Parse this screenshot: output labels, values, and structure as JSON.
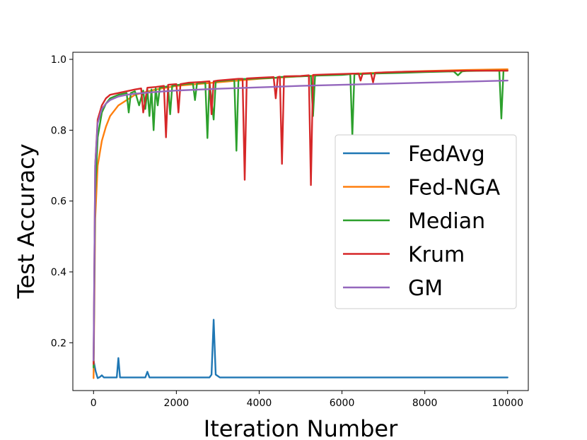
{
  "chart_data": {
    "type": "line",
    "title": "",
    "xlabel": "Iteration Number",
    "ylabel": "Test Accuracy",
    "xlim": [
      -500,
      10500
    ],
    "ylim": [
      0.065,
      1.02
    ],
    "xticks": [
      0,
      2000,
      4000,
      6000,
      8000,
      10000
    ],
    "xtick_labels": [
      "0",
      "2000",
      "4000",
      "6000",
      "8000",
      "10000"
    ],
    "yticks": [
      0.2,
      0.4,
      0.6,
      0.8,
      1.0
    ],
    "ytick_labels": [
      "0.2",
      "0.4",
      "0.6",
      "0.8",
      "1.0"
    ],
    "grid": false,
    "legend_position": "center-right",
    "series": [
      {
        "name": "FedAvg",
        "color": "#1f77b4",
        "x": [
          0,
          50,
          100,
          150,
          200,
          250,
          500,
          560,
          600,
          640,
          700,
          1000,
          1250,
          1300,
          1350,
          1400,
          2000,
          2500,
          2800,
          2850,
          2900,
          2950,
          3050,
          3500,
          5000,
          7000,
          10000
        ],
        "y": [
          0.15,
          0.12,
          0.1,
          0.103,
          0.108,
          0.102,
          0.102,
          0.102,
          0.157,
          0.102,
          0.102,
          0.102,
          0.102,
          0.118,
          0.102,
          0.102,
          0.102,
          0.102,
          0.102,
          0.11,
          0.265,
          0.11,
          0.102,
          0.102,
          0.102,
          0.102,
          0.102
        ]
      },
      {
        "name": "Fed-NGA",
        "color": "#ff7f0e",
        "x": [
          0,
          40,
          100,
          200,
          300,
          400,
          600,
          800,
          1000,
          1500,
          2000,
          3000,
          4000,
          5000,
          6000,
          7000,
          8000,
          9000,
          10000
        ],
        "y": [
          0.1,
          0.55,
          0.7,
          0.77,
          0.81,
          0.84,
          0.87,
          0.885,
          0.9,
          0.915,
          0.925,
          0.935,
          0.945,
          0.952,
          0.958,
          0.963,
          0.967,
          0.97,
          0.972
        ]
      },
      {
        "name": "Median",
        "color": "#2ca02c",
        "x": [
          0,
          40,
          100,
          200,
          300,
          400,
          600,
          800,
          850,
          900,
          1000,
          1100,
          1200,
          1250,
          1300,
          1350,
          1400,
          1450,
          1500,
          1550,
          1600,
          1700,
          1800,
          1850,
          1900,
          2000,
          2200,
          2400,
          2450,
          2500,
          2700,
          2750,
          2800,
          2900,
          2950,
          3000,
          3200,
          3400,
          3450,
          3500,
          3800,
          4000,
          4400,
          4500,
          5000,
          5250,
          5300,
          5350,
          6000,
          6200,
          6250,
          6300,
          6800,
          7500,
          8000,
          8700,
          8800,
          8900,
          9000,
          9500,
          9800,
          9850,
          9900,
          10000
        ],
        "y": [
          0.13,
          0.62,
          0.78,
          0.85,
          0.875,
          0.89,
          0.9,
          0.905,
          0.85,
          0.905,
          0.91,
          0.87,
          0.912,
          0.86,
          0.915,
          0.84,
          0.915,
          0.8,
          0.918,
          0.87,
          0.92,
          0.922,
          0.924,
          0.845,
          0.925,
          0.927,
          0.93,
          0.932,
          0.885,
          0.933,
          0.934,
          0.778,
          0.936,
          0.83,
          0.937,
          0.938,
          0.94,
          0.942,
          0.742,
          0.944,
          0.945,
          0.946,
          0.948,
          0.95,
          0.952,
          0.953,
          0.84,
          0.954,
          0.956,
          0.958,
          0.785,
          0.958,
          0.96,
          0.962,
          0.964,
          0.966,
          0.955,
          0.966,
          0.967,
          0.968,
          0.968,
          0.833,
          0.968,
          0.968
        ]
      },
      {
        "name": "Krum",
        "color": "#d62728",
        "x": [
          0,
          40,
          100,
          200,
          300,
          400,
          600,
          800,
          1000,
          1150,
          1200,
          1300,
          1500,
          1700,
          1750,
          1800,
          2000,
          2050,
          2100,
          2300,
          2600,
          2800,
          2850,
          2900,
          3000,
          3500,
          3600,
          3650,
          3700,
          4000,
          4350,
          4400,
          4450,
          4500,
          4550,
          4600,
          5000,
          5200,
          5250,
          5300,
          5800,
          6400,
          6450,
          6500,
          6700,
          6750,
          6800,
          7000,
          7500,
          8000,
          8500,
          9000,
          9500,
          10000
        ],
        "y": [
          0.14,
          0.7,
          0.83,
          0.87,
          0.89,
          0.9,
          0.905,
          0.91,
          0.915,
          0.918,
          0.85,
          0.92,
          0.922,
          0.925,
          0.78,
          0.928,
          0.93,
          0.85,
          0.93,
          0.934,
          0.936,
          0.938,
          0.845,
          0.938,
          0.94,
          0.945,
          0.945,
          0.66,
          0.946,
          0.948,
          0.95,
          0.89,
          0.95,
          0.951,
          0.705,
          0.952,
          0.953,
          0.955,
          0.645,
          0.956,
          0.958,
          0.96,
          0.94,
          0.96,
          0.961,
          0.935,
          0.962,
          0.963,
          0.965,
          0.966,
          0.967,
          0.968,
          0.968,
          0.968
        ]
      },
      {
        "name": "GM",
        "color": "#9467bd",
        "x": [
          0,
          40,
          100,
          200,
          300,
          400,
          600,
          800,
          1000,
          1500,
          2000,
          3000,
          4000,
          5000,
          6000,
          7000,
          8000,
          9000,
          10000
        ],
        "y": [
          0.15,
          0.7,
          0.82,
          0.86,
          0.875,
          0.885,
          0.895,
          0.9,
          0.903,
          0.908,
          0.912,
          0.917,
          0.921,
          0.925,
          0.928,
          0.931,
          0.934,
          0.937,
          0.94
        ]
      }
    ]
  }
}
